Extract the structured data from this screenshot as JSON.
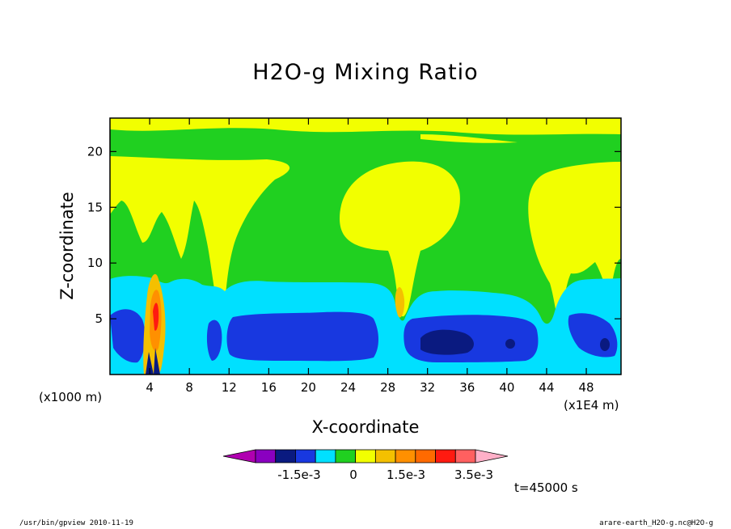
{
  "chart_data": {
    "type": "heatmap",
    "title": "H2O-g Mixing Ratio",
    "xlabel": "X-coordinate",
    "ylabel": "Z-coordinate",
    "x_unit_left": "(x1000 m)",
    "x_unit_right": "(x1E4 m)",
    "xlim": [
      0,
      51.5
    ],
    "ylim": [
      0,
      23
    ],
    "x_ticks": [
      4,
      8,
      12,
      16,
      20,
      24,
      28,
      32,
      36,
      40,
      44,
      48
    ],
    "y_ticks": [
      5,
      10,
      15,
      20
    ],
    "time_label": "t=45000 s",
    "colorbar": {
      "colors": [
        "#b000b0",
        "#8a00c0",
        "#0a1a80",
        "#1838e0",
        "#00e0ff",
        "#20d020",
        "#f2ff00",
        "#f4c000",
        "#ff9000",
        "#ff6a00",
        "#ff1a10",
        "#ff6060",
        "#ffb0c8"
      ],
      "tick_labels": [
        "-1.5e-3",
        "0",
        "1.5e-3",
        "3.5e-3"
      ]
    },
    "regions": [
      {
        "name": "upper-green-band",
        "level": 0,
        "x": [
          0,
          51.5
        ],
        "z": [
          17.5,
          23
        ]
      },
      {
        "name": "yellow-stratiform",
        "level": 1,
        "x": [
          0,
          51.5
        ],
        "z": [
          9,
          19
        ]
      },
      {
        "name": "cyan-band",
        "level": -1,
        "x": [
          0,
          51.5
        ],
        "z": [
          0,
          9.5
        ]
      },
      {
        "name": "blue-core-1",
        "level": -2,
        "x": [
          12,
          27
        ],
        "z": [
          1.5,
          6
        ]
      },
      {
        "name": "blue-core-2",
        "level": -2,
        "x": [
          30,
          43
        ],
        "z": [
          1.5,
          6
        ]
      },
      {
        "name": "navy-core",
        "level": -3,
        "x": [
          30.5,
          37
        ],
        "z": [
          2.3,
          4
        ]
      },
      {
        "name": "convective-plume",
        "level": 3,
        "x": [
          3.5,
          5.5
        ],
        "z": [
          0,
          9
        ]
      }
    ]
  },
  "footer": {
    "left": "/usr/bin/gpview  2010-11-19",
    "right": "arare-earth_H2O-g.nc@H2O-g"
  }
}
